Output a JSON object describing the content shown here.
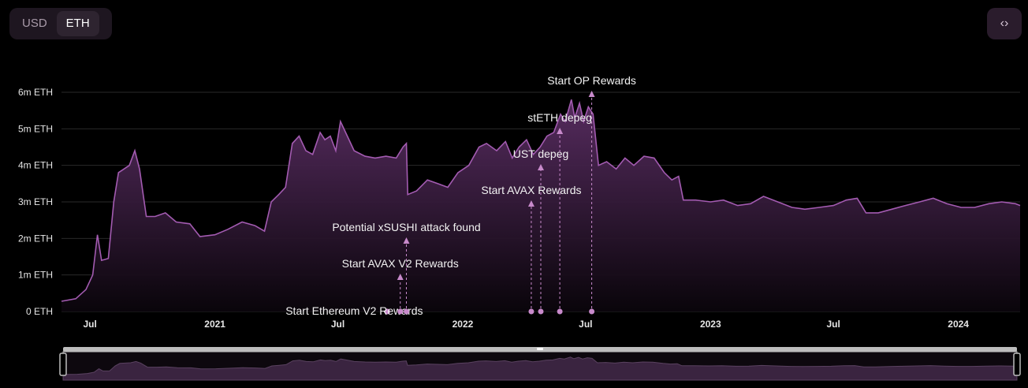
{
  "currency_toggle": {
    "options": [
      "USD",
      "ETH"
    ],
    "selected": "ETH"
  },
  "embed_button": {
    "icon": "code-icon",
    "glyph": "‹›"
  },
  "colors": {
    "line": "#a35bb1",
    "fill_top": "#5b2e64",
    "fill_bottom": "#0a050b",
    "annotation": "#c88acb",
    "grid": "#2a2a2a",
    "brush_frame": "#bdbdbd"
  },
  "chart_data": {
    "type": "area",
    "title": "",
    "xlabel": "",
    "ylabel": "",
    "y_unit": "ETH",
    "ylim": [
      0,
      6000000
    ],
    "y_ticks": [
      {
        "value": 0,
        "label": "0 ETH"
      },
      {
        "value": 1000000,
        "label": "1m ETH"
      },
      {
        "value": 2000000,
        "label": "2m ETH"
      },
      {
        "value": 3000000,
        "label": "3m ETH"
      },
      {
        "value": 4000000,
        "label": "4m ETH"
      },
      {
        "value": 5000000,
        "label": "5m ETH"
      },
      {
        "value": 6000000,
        "label": "6m ETH"
      }
    ],
    "xlim": [
      "2020-05-20",
      "2024-04-01"
    ],
    "x_ticks": [
      {
        "date": "2020-07-01",
        "label": "Jul"
      },
      {
        "date": "2021-01-01",
        "label": "2021"
      },
      {
        "date": "2021-07-01",
        "label": "Jul"
      },
      {
        "date": "2022-01-01",
        "label": "2022"
      },
      {
        "date": "2022-07-01",
        "label": "Jul"
      },
      {
        "date": "2023-01-01",
        "label": "2023"
      },
      {
        "date": "2023-07-01",
        "label": "Jul"
      },
      {
        "date": "2024-01-01",
        "label": "2024"
      }
    ],
    "grid": true,
    "legend": "none",
    "series": [
      {
        "points": [
          [
            "2020-05-20",
            0.28
          ],
          [
            "2020-06-10",
            0.35
          ],
          [
            "2020-06-25",
            0.6
          ],
          [
            "2020-07-05",
            1.0
          ],
          [
            "2020-07-12",
            2.1
          ],
          [
            "2020-07-18",
            1.4
          ],
          [
            "2020-07-28",
            1.45
          ],
          [
            "2020-08-05",
            3.0
          ],
          [
            "2020-08-12",
            3.8
          ],
          [
            "2020-08-20",
            3.9
          ],
          [
            "2020-08-28",
            4.0
          ],
          [
            "2020-09-05",
            4.4
          ],
          [
            "2020-09-12",
            3.9
          ],
          [
            "2020-09-22",
            2.6
          ],
          [
            "2020-10-05",
            2.6
          ],
          [
            "2020-10-20",
            2.7
          ],
          [
            "2020-11-05",
            2.45
          ],
          [
            "2020-11-25",
            2.4
          ],
          [
            "2020-12-10",
            2.05
          ],
          [
            "2021-01-01",
            2.1
          ],
          [
            "2021-01-20",
            2.25
          ],
          [
            "2021-02-10",
            2.45
          ],
          [
            "2021-03-01",
            2.35
          ],
          [
            "2021-03-15",
            2.2
          ],
          [
            "2021-03-25",
            3.0
          ],
          [
            "2021-04-05",
            3.2
          ],
          [
            "2021-04-15",
            3.4
          ],
          [
            "2021-04-25",
            4.6
          ],
          [
            "2021-05-05",
            4.8
          ],
          [
            "2021-05-15",
            4.4
          ],
          [
            "2021-05-25",
            4.3
          ],
          [
            "2021-06-05",
            4.9
          ],
          [
            "2021-06-12",
            4.7
          ],
          [
            "2021-06-20",
            4.8
          ],
          [
            "2021-06-28",
            4.4
          ],
          [
            "2021-07-05",
            5.2
          ],
          [
            "2021-07-15",
            4.8
          ],
          [
            "2021-07-25",
            4.4
          ],
          [
            "2021-08-10",
            4.25
          ],
          [
            "2021-08-25",
            4.2
          ],
          [
            "2021-09-10",
            4.25
          ],
          [
            "2021-09-25",
            4.2
          ],
          [
            "2021-10-05",
            4.5
          ],
          [
            "2021-10-10",
            4.6
          ],
          [
            "2021-10-12",
            3.2
          ],
          [
            "2021-10-25",
            3.3
          ],
          [
            "2021-11-10",
            3.6
          ],
          [
            "2021-11-25",
            3.5
          ],
          [
            "2021-12-10",
            3.4
          ],
          [
            "2021-12-25",
            3.8
          ],
          [
            "2022-01-10",
            4.0
          ],
          [
            "2022-01-25",
            4.5
          ],
          [
            "2022-02-05",
            4.6
          ],
          [
            "2022-02-20",
            4.4
          ],
          [
            "2022-03-05",
            4.65
          ],
          [
            "2022-03-15",
            4.2
          ],
          [
            "2022-03-25",
            4.5
          ],
          [
            "2022-04-05",
            4.7
          ],
          [
            "2022-04-15",
            4.3
          ],
          [
            "2022-04-25",
            4.5
          ],
          [
            "2022-05-05",
            4.8
          ],
          [
            "2022-05-15",
            4.9
          ],
          [
            "2022-05-25",
            5.4
          ],
          [
            "2022-06-01",
            5.2
          ],
          [
            "2022-06-10",
            5.8
          ],
          [
            "2022-06-15",
            5.3
          ],
          [
            "2022-06-22",
            5.7
          ],
          [
            "2022-06-28",
            5.2
          ],
          [
            "2022-07-05",
            5.6
          ],
          [
            "2022-07-12",
            5.4
          ],
          [
            "2022-07-20",
            4.0
          ],
          [
            "2022-08-01",
            4.1
          ],
          [
            "2022-08-15",
            3.9
          ],
          [
            "2022-08-28",
            4.2
          ],
          [
            "2022-09-10",
            4.0
          ],
          [
            "2022-09-25",
            4.25
          ],
          [
            "2022-10-10",
            4.2
          ],
          [
            "2022-10-25",
            3.8
          ],
          [
            "2022-11-05",
            3.6
          ],
          [
            "2022-11-15",
            3.7
          ],
          [
            "2022-11-22",
            3.05
          ],
          [
            "2022-12-10",
            3.05
          ],
          [
            "2023-01-01",
            3.0
          ],
          [
            "2023-01-20",
            3.05
          ],
          [
            "2023-02-10",
            2.9
          ],
          [
            "2023-03-01",
            2.95
          ],
          [
            "2023-03-20",
            3.15
          ],
          [
            "2023-04-10",
            3.0
          ],
          [
            "2023-05-01",
            2.85
          ],
          [
            "2023-05-20",
            2.8
          ],
          [
            "2023-06-10",
            2.85
          ],
          [
            "2023-07-01",
            2.9
          ],
          [
            "2023-07-20",
            3.05
          ],
          [
            "2023-08-05",
            3.1
          ],
          [
            "2023-08-18",
            2.7
          ],
          [
            "2023-09-05",
            2.7
          ],
          [
            "2023-09-25",
            2.8
          ],
          [
            "2023-10-15",
            2.9
          ],
          [
            "2023-11-05",
            3.0
          ],
          [
            "2023-11-25",
            3.1
          ],
          [
            "2023-12-15",
            2.95
          ],
          [
            "2024-01-05",
            2.85
          ],
          [
            "2024-01-25",
            2.85
          ],
          [
            "2024-02-15",
            2.95
          ],
          [
            "2024-03-05",
            3.0
          ],
          [
            "2024-03-25",
            2.95
          ],
          [
            "2024-04-01",
            2.9
          ]
        ],
        "value_scale": "millions of ETH"
      }
    ],
    "annotations": [
      {
        "date": "2021-09-12",
        "text": "Start Ethereum V2 Rewards",
        "label_level": 0
      },
      {
        "date": "2021-10-01",
        "text": "Start AVAX V2 Rewards",
        "label_level": 1
      },
      {
        "date": "2021-10-10",
        "text": "Potential xSUSHI attack found",
        "label_level": 2
      },
      {
        "date": "2022-04-12",
        "text": "Start AVAX Rewards",
        "label_level": 3
      },
      {
        "date": "2022-04-26",
        "text": "UST depeg",
        "label_level": 4
      },
      {
        "date": "2022-05-24",
        "text": "stETH depeg",
        "label_level": 5
      },
      {
        "date": "2022-07-10",
        "text": "Start OP Rewards",
        "label_level": 6
      }
    ]
  }
}
